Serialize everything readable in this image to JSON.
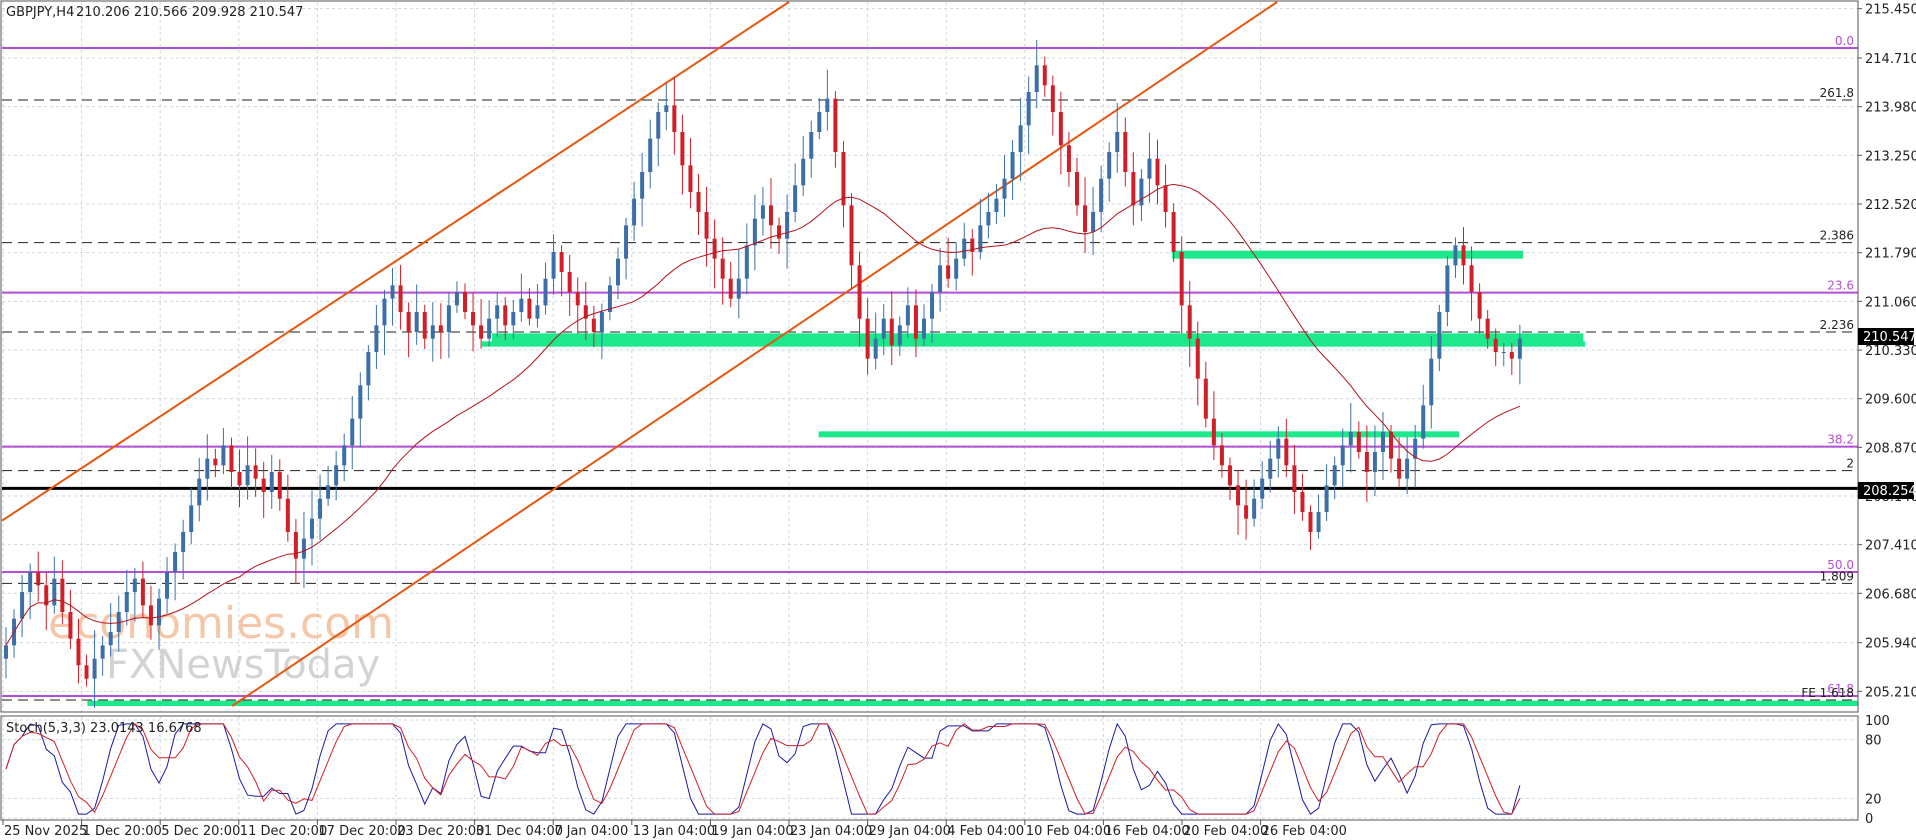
{
  "header": {
    "symbol": "GBPJPY,H4",
    "ohlc": "210.206 210.566 209.928 210.547"
  },
  "watermark": {
    "line1": "economies.com",
    "line2": "FXNewsToday"
  },
  "colors": {
    "bull": "#3c6fa8",
    "bear": "#d11f2a",
    "ma": "#b5121b",
    "channel": "#e5560f",
    "fib": "#b54ed6",
    "zone": "#1de88b",
    "support": "#000000",
    "grid": "#cfd6dc"
  },
  "chart_data": {
    "type": "candlestick",
    "ylim": [
      204.9,
      215.55
    ],
    "price_ticks": [
      "215.450",
      "214.710",
      "213.980",
      "213.250",
      "212.520",
      "211.790",
      "211.060",
      "210.330",
      "209.600",
      "208.870",
      "208.140",
      "207.410",
      "206.680",
      "205.940",
      "205.210"
    ],
    "time_labels": [
      "25 Nov 2025",
      "1 Dec 20:00",
      "5 Dec 20:00",
      "11 Dec 20:00",
      "17 Dec 20:00",
      "23 Dec 20:00",
      "31 Dec 04:00",
      "7 Jan 04:00",
      "13 Jan 04:00",
      "19 Jan 04:00",
      "23 Jan 04:00",
      "29 Jan 04:00",
      "4 Feb 04:00",
      "10 Feb 04:00",
      "16 Feb 04:00",
      "20 Feb 04:00",
      "26 Feb 04:00"
    ],
    "current_price": "210.547",
    "support_price": "208.254",
    "fib_levels": [
      {
        "label": "0.0",
        "price": 214.86
      },
      {
        "label": "23.6",
        "price": 211.19
      },
      {
        "label": "38.2",
        "price": 208.88
      },
      {
        "label": "50.0",
        "price": 207.0
      },
      {
        "label": "61.8",
        "price": 205.14
      }
    ],
    "extension_levels": [
      {
        "label": "261.8",
        "price": 214.08
      },
      {
        "label": "2.386",
        "price": 211.94
      },
      {
        "label": "2.236",
        "price": 210.6
      },
      {
        "label": "2",
        "price": 208.52
      },
      {
        "label": "1.809",
        "price": 206.83
      },
      {
        "label": "FE 1.618",
        "price": 205.08
      }
    ],
    "zones": [
      {
        "from": 0.6305,
        "to": 0.8195,
        "low": 211.7,
        "high": 211.82
      },
      {
        "from": 0.264,
        "to": 0.852,
        "low": 210.42,
        "high": 210.58
      },
      {
        "from": 0.2585,
        "to": 0.853,
        "low": 210.38,
        "high": 210.46
      },
      {
        "from": 0.44,
        "to": 0.785,
        "low": 209.02,
        "high": 209.11
      },
      {
        "from": 0.046,
        "to": 1.0,
        "low": 204.99,
        "high": 205.07
      }
    ],
    "channel": [
      {
        "x1": 0.0,
        "p1": 207.77,
        "x2": 0.424,
        "p2": 215.55
      },
      {
        "x1": 0.124,
        "p1": 204.99,
        "x2": 0.687,
        "p2": 215.55
      }
    ],
    "ohlc_close": [
      205.9,
      206.3,
      206.7,
      207.0,
      206.8,
      206.5,
      206.9,
      206.4,
      206.0,
      205.6,
      205.4,
      205.7,
      205.9,
      206.1,
      206.4,
      206.7,
      206.9,
      206.5,
      206.2,
      206.6,
      207.0,
      207.3,
      207.6,
      208.0,
      208.4,
      208.7,
      208.6,
      208.9,
      208.5,
      208.3,
      208.6,
      208.4,
      208.2,
      208.5,
      208.1,
      207.6,
      207.2,
      207.5,
      207.8,
      208.1,
      208.3,
      208.6,
      208.9,
      209.3,
      209.8,
      210.3,
      210.7,
      211.1,
      211.3,
      210.9,
      210.6,
      210.9,
      210.5,
      210.7,
      210.6,
      211.0,
      211.2,
      210.9,
      210.7,
      210.5,
      210.8,
      211.0,
      210.7,
      210.9,
      211.1,
      210.8,
      211.0,
      211.4,
      211.8,
      211.5,
      211.2,
      211.0,
      210.8,
      210.6,
      210.9,
      211.3,
      211.7,
      212.2,
      212.6,
      213.0,
      213.5,
      213.9,
      214.0,
      213.6,
      213.1,
      212.7,
      212.4,
      212.0,
      211.7,
      211.4,
      211.1,
      211.4,
      211.9,
      212.3,
      212.5,
      212.2,
      212.0,
      212.4,
      212.8,
      213.2,
      213.6,
      213.9,
      214.1,
      213.3,
      212.5,
      211.6,
      210.8,
      210.2,
      210.5,
      210.8,
      210.4,
      210.7,
      211.0,
      210.5,
      210.8,
      211.2,
      211.6,
      211.4,
      211.7,
      212.0,
      211.8,
      212.2,
      212.4,
      212.6,
      212.9,
      213.3,
      213.7,
      214.2,
      214.6,
      214.3,
      213.9,
      213.4,
      213.0,
      212.5,
      212.1,
      212.4,
      212.9,
      213.3,
      213.6,
      213.0,
      212.5,
      212.9,
      213.2,
      212.8,
      212.4,
      211.8,
      211.0,
      210.5,
      209.9,
      209.3,
      208.9,
      208.6,
      208.3,
      208.0,
      207.8,
      208.1,
      208.4,
      208.7,
      209.0,
      208.6,
      208.2,
      207.9,
      207.6,
      207.9,
      208.3,
      208.6,
      208.9,
      209.1,
      208.8,
      208.5,
      208.8,
      209.1,
      208.7,
      208.4,
      208.7,
      209.0,
      209.5,
      210.2,
      210.9,
      211.6,
      211.9,
      211.6,
      211.2,
      210.8,
      210.5,
      210.3,
      210.3,
      210.2,
      210.5
    ]
  },
  "stochastic": {
    "label": "Stoch(5,3,3) 23.0143 16.6768",
    "ticks": [
      "100",
      "80",
      "20",
      "0"
    ]
  }
}
